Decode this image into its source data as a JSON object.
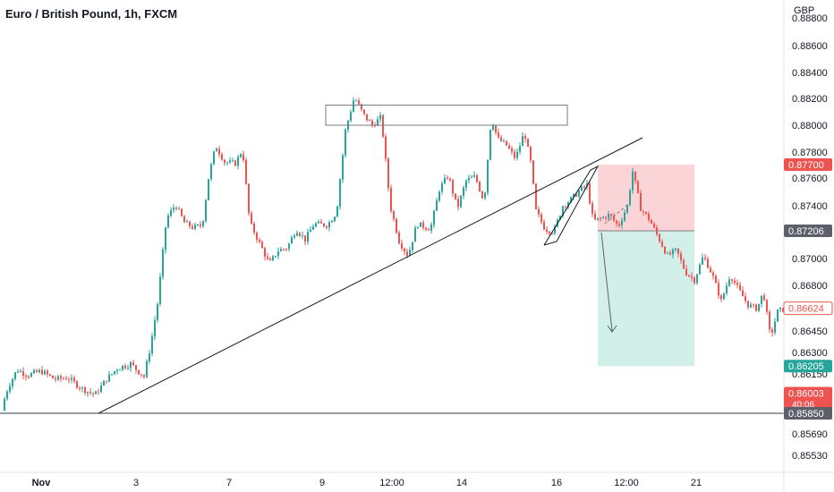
{
  "header": {
    "title": "Euro / British Pound, 1h, FXCM"
  },
  "colors": {
    "up": "#26a69a",
    "down": "#ef5350",
    "profit_zone": "#d3efe9",
    "loss_zone": "#fbd4d7",
    "label_red": "#ef5350",
    "label_dark": "#5d606b",
    "label_green": "#26a69a",
    "grid": "#ffffff",
    "line": "#131722"
  },
  "chart_data": {
    "type": "candlestick",
    "title": "Euro / British Pound, 1h, FXCM",
    "currency_label": "GBP",
    "y_ticks": [
      "0.88800",
      "0.88600",
      "0.88400",
      "0.88200",
      "0.88000",
      "0.87800",
      "0.87600",
      "0.87400",
      "0.87200",
      "0.87000",
      "0.86800",
      "0.86450",
      "0.86300",
      "0.86150",
      "0.85690",
      "0.85530"
    ],
    "x_ticks": [
      "Nov",
      "3",
      "7",
      "9",
      "12:00",
      "14",
      "16",
      "12:00",
      "21"
    ],
    "price_labels": [
      {
        "text": "0.87700",
        "value": 0.877,
        "style": "red"
      },
      {
        "text": "0.87206",
        "value": 0.87206,
        "style": "dark"
      },
      {
        "text": "0.86624",
        "value": 0.86624,
        "style": "outline"
      },
      {
        "text": "0.86205",
        "value": 0.86205,
        "style": "green"
      },
      {
        "text": "0.86003",
        "value": 0.86003,
        "style": "red",
        "sub": "40:06"
      },
      {
        "text": "0.85850",
        "value": 0.8585,
        "style": "dark"
      }
    ],
    "horizontal_line": {
      "value": 0.8585
    },
    "resistance_box": {
      "low": 0.88,
      "high": 0.8815
    },
    "short_position": {
      "entry": 0.87206,
      "stop": 0.877,
      "target": 0.86205
    },
    "close_points": [
      [
        0,
        0.8587
      ],
      [
        8,
        0.8605
      ],
      [
        18,
        0.8618
      ],
      [
        30,
        0.8614
      ],
      [
        45,
        0.8617
      ],
      [
        60,
        0.8611
      ],
      [
        75,
        0.8612
      ],
      [
        90,
        0.8604
      ],
      [
        105,
        0.8599
      ],
      [
        118,
        0.8611
      ],
      [
        130,
        0.8619
      ],
      [
        145,
        0.8622
      ],
      [
        160,
        0.8613
      ],
      [
        168,
        0.8637
      ],
      [
        175,
        0.8666
      ],
      [
        185,
        0.873
      ],
      [
        195,
        0.8741
      ],
      [
        205,
        0.8727
      ],
      [
        215,
        0.8723
      ],
      [
        225,
        0.8725
      ],
      [
        232,
        0.876
      ],
      [
        240,
        0.8785
      ],
      [
        250,
        0.8772
      ],
      [
        262,
        0.8771
      ],
      [
        270,
        0.8782
      ],
      [
        278,
        0.8727
      ],
      [
        290,
        0.871
      ],
      [
        300,
        0.8696
      ],
      [
        310,
        0.8706
      ],
      [
        320,
        0.8708
      ],
      [
        330,
        0.8722
      ],
      [
        340,
        0.8714
      ],
      [
        350,
        0.8726
      ],
      [
        365,
        0.8725
      ],
      [
        375,
        0.8735
      ],
      [
        385,
        0.8796
      ],
      [
        395,
        0.8821
      ],
      [
        405,
        0.8808
      ],
      [
        415,
        0.88
      ],
      [
        425,
        0.8806
      ],
      [
        435,
        0.874
      ],
      [
        445,
        0.8713
      ],
      [
        455,
        0.8702
      ],
      [
        465,
        0.8726
      ],
      [
        480,
        0.8722
      ],
      [
        490,
        0.8752
      ],
      [
        500,
        0.8762
      ],
      [
        510,
        0.8738
      ],
      [
        520,
        0.8758
      ],
      [
        530,
        0.8761
      ],
      [
        540,
        0.8743
      ],
      [
        548,
        0.8806
      ],
      [
        555,
        0.879
      ],
      [
        565,
        0.8785
      ],
      [
        575,
        0.8775
      ],
      [
        585,
        0.8795
      ],
      [
        592,
        0.8772
      ],
      [
        598,
        0.8736
      ],
      [
        608,
        0.8722
      ],
      [
        618,
        0.872
      ],
      [
        628,
        0.874
      ],
      [
        638,
        0.8745
      ],
      [
        645,
        0.875
      ],
      [
        655,
        0.8755
      ],
      [
        662,
        0.8728
      ],
      [
        670,
        0.873
      ],
      [
        680,
        0.8733
      ],
      [
        690,
        0.8724
      ],
      [
        700,
        0.874
      ],
      [
        706,
        0.8765
      ],
      [
        715,
        0.8738
      ],
      [
        725,
        0.8729
      ],
      [
        735,
        0.8715
      ],
      [
        745,
        0.8702
      ],
      [
        755,
        0.8706
      ],
      [
        765,
        0.869
      ],
      [
        775,
        0.8684
      ],
      [
        785,
        0.8702
      ],
      [
        795,
        0.8688
      ],
      [
        805,
        0.8668
      ],
      [
        815,
        0.8688
      ],
      [
        825,
        0.8676
      ],
      [
        835,
        0.8665
      ],
      [
        845,
        0.8662
      ],
      [
        852,
        0.8675
      ],
      [
        860,
        0.864
      ],
      [
        868,
        0.866
      ],
      [
        875,
        0.8662
      ]
    ]
  }
}
